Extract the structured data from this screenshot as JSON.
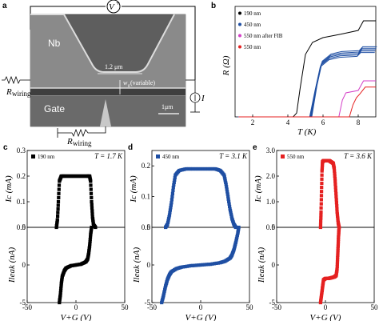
{
  "panel_labels": {
    "a": "a",
    "b": "b",
    "c": "c",
    "d": "d",
    "e": "e"
  },
  "micrograph": {
    "nb_label": "Nb",
    "gate_label": "Gate",
    "width_label": "1.2 μm",
    "wg_label": "w",
    "wg_sub": "g",
    "wg_suffix": " (variable)",
    "scale_label": "1μm",
    "voltage_symbol": "V",
    "voltage_sup": "+",
    "current_symbol": "I",
    "rwiring": "R",
    "rwiring_sub": "wiring",
    "colors": {
      "sem_bg": "#5e5e5e",
      "sem_dark": "#3f3f3f",
      "nb_light": "#9a9a9a",
      "edge": "#dcdcdc"
    }
  },
  "chart_data": [
    {
      "id": "b",
      "type": "line",
      "xlabel": "T (K)",
      "ylabel": "R (Ω)",
      "xlim": [
        1.0,
        9.0
      ],
      "xticks": [
        2,
        4,
        6,
        8
      ],
      "yticks": [],
      "series": [
        {
          "name": "190 nm",
          "color": "#000000",
          "x": [
            1.2,
            4.3,
            4.5,
            4.7,
            5.0,
            5.4,
            6.0,
            7.0,
            8.0,
            8.3,
            8.6,
            9.0
          ],
          "y": [
            0,
            0,
            8,
            60,
            130,
            155,
            165,
            172,
            180,
            200,
            200,
            200
          ]
        },
        {
          "name": "450 nm",
          "color": "#1f4fa3",
          "x": [
            1.2,
            5.3,
            5.6,
            5.9,
            6.4,
            7.0,
            8.0,
            8.2,
            9.0
          ],
          "y": [
            0,
            0,
            60,
            110,
            125,
            130,
            132,
            140,
            140
          ]
        },
        {
          "name": "550 nm after FIB",
          "color": "#d43fc7",
          "x": [
            1.2,
            6.9,
            7.1,
            7.3,
            8.0,
            8.3,
            9.0
          ],
          "y": [
            0,
            0,
            35,
            50,
            55,
            75,
            75
          ]
        },
        {
          "name": "550 nm",
          "color": "#e52121",
          "x": [
            1.2,
            7.5,
            7.7,
            7.9,
            8.1,
            8.4,
            9.0
          ],
          "y": [
            0,
            0,
            25,
            40,
            48,
            62,
            62
          ]
        }
      ]
    },
    {
      "id": "c",
      "type": "scatter",
      "legend": "190 nm",
      "annotation": "T = 1.7 K",
      "color": "#000000",
      "xlabel": "V+G (V)",
      "ylabel_top": "Ic (mA)",
      "ylabel_bottom": "Ileak (nA)",
      "xlim": [
        -50,
        50
      ],
      "xticks": [
        -50,
        0,
        50
      ],
      "top": {
        "ylim": [
          0,
          0.3
        ],
        "yticks": [
          0.0,
          0.1,
          0.2,
          0.3
        ],
        "x": [
          -20,
          -19,
          -18,
          -17,
          -15,
          -12,
          -8,
          -4,
          0,
          4,
          8,
          12,
          14,
          15,
          16,
          17,
          18,
          20
        ],
        "y": [
          0.0,
          0.03,
          0.1,
          0.18,
          0.2,
          0.2,
          0.2,
          0.2,
          0.2,
          0.2,
          0.2,
          0.2,
          0.2,
          0.18,
          0.1,
          0.04,
          0.01,
          0.0
        ]
      },
      "bottom": {
        "ylim": [
          -5,
          5
        ],
        "yticks": [
          -5,
          0,
          5
        ],
        "x": [
          -17,
          -16,
          -15,
          -14,
          -12,
          -10,
          -5,
          0,
          5,
          10,
          12,
          13,
          14,
          15,
          16
        ],
        "y": [
          -5,
          -4,
          -2.5,
          -1.5,
          -0.8,
          -0.4,
          -0.1,
          0,
          0.1,
          0.4,
          0.8,
          1.5,
          2.5,
          4,
          5
        ]
      }
    },
    {
      "id": "d",
      "type": "scatter",
      "legend": "450 nm",
      "annotation": "T = 3.1 K",
      "color": "#1f4fa3",
      "xlabel": "V+G (V)",
      "ylabel_top": "Ic (mA)",
      "ylabel_bottom": "Ileak (nA)",
      "xlim": [
        -50,
        50
      ],
      "xticks": [
        -50,
        0,
        50
      ],
      "top": {
        "ylim": [
          0,
          0.25
        ],
        "yticks": [
          0.0,
          0.1,
          0.2
        ],
        "x": [
          -36,
          -34,
          -32,
          -30,
          -28,
          -26,
          -22,
          -15,
          -8,
          0,
          8,
          15,
          20,
          24,
          26,
          28,
          30,
          32,
          34,
          36
        ],
        "y": [
          0.0,
          0.01,
          0.04,
          0.08,
          0.13,
          0.17,
          0.185,
          0.19,
          0.19,
          0.19,
          0.19,
          0.19,
          0.185,
          0.17,
          0.14,
          0.1,
          0.06,
          0.03,
          0.01,
          0.0
        ]
      },
      "bottom": {
        "ylim": [
          -5,
          5
        ],
        "yticks": [
          -5,
          0,
          5
        ],
        "x": [
          -40,
          -38,
          -36,
          -34,
          -32,
          -30,
          -25,
          -20,
          -10,
          0,
          10,
          20,
          25,
          30,
          32,
          34,
          36,
          38,
          39
        ],
        "y": [
          -5,
          -4,
          -2.8,
          -1.9,
          -1.3,
          -0.9,
          -0.5,
          -0.3,
          -0.1,
          0,
          0.1,
          0.3,
          0.5,
          0.9,
          1.3,
          2,
          3,
          4.2,
          5
        ]
      }
    },
    {
      "id": "e",
      "type": "scatter",
      "legend": "550 nm",
      "annotation": "T = 3.6 K",
      "color": "#e52121",
      "xlabel": "V+G (V)",
      "ylabel_top": "Ic (mA)",
      "ylabel_bottom": "Ileak (nA)",
      "xlim": [
        -50,
        50
      ],
      "xticks": [
        -50,
        0,
        50
      ],
      "top": {
        "ylim": [
          0,
          3.0
        ],
        "yticks": [
          0.0,
          1.0,
          2.0,
          3.0
        ],
        "x": [
          -5,
          -4.5,
          -4,
          -3.5,
          -3,
          -2,
          0,
          2,
          4,
          6,
          8,
          9,
          10,
          11,
          12,
          13,
          14
        ],
        "y": [
          0.0,
          0.6,
          1.4,
          2.2,
          2.55,
          2.6,
          2.6,
          2.6,
          2.6,
          2.55,
          2.5,
          2.3,
          1.8,
          1.2,
          0.6,
          0.2,
          0.0
        ]
      },
      "bottom": {
        "ylim": [
          -5,
          5
        ],
        "yticks": [
          -5,
          0,
          5
        ],
        "x": [
          -5,
          -4,
          -3,
          -2,
          0,
          3,
          6,
          9,
          11,
          12,
          12.5,
          13,
          13.5,
          14
        ],
        "y": [
          -5,
          -4,
          -3,
          -2,
          -1.8,
          -1.8,
          -1.7,
          -1.6,
          -1.4,
          -0.5,
          1,
          2.5,
          4,
          5
        ]
      }
    }
  ]
}
